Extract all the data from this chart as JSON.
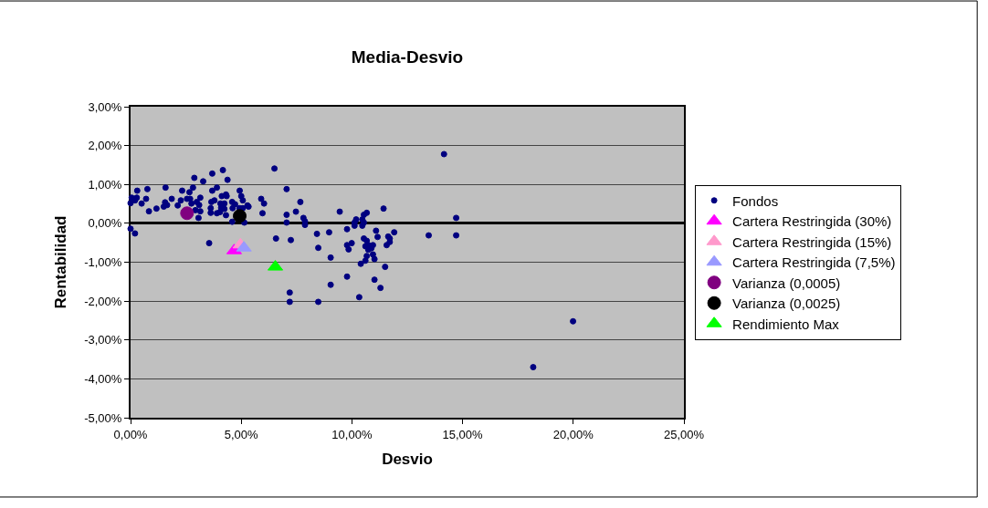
{
  "chart_data": {
    "type": "scatter",
    "title": "Media-Desvio",
    "xlabel": "Desvio",
    "ylabel": "Rentabilidad",
    "xlim": [
      0,
      25
    ],
    "xticks": [
      {
        "value": 0,
        "label": "0,00%"
      },
      {
        "value": 5,
        "label": "5,00%"
      },
      {
        "value": 10,
        "label": "10,00%"
      },
      {
        "value": 15,
        "label": "15,00%"
      },
      {
        "value": 20,
        "label": "20,00%"
      },
      {
        "value": 25,
        "label": "25,00%"
      }
    ],
    "ylim": [
      -5,
      3
    ],
    "yticks": [
      {
        "value": -5,
        "label": "-5,00%"
      },
      {
        "value": -4,
        "label": "-4,00%"
      },
      {
        "value": -3,
        "label": "-3,00%"
      },
      {
        "value": -2,
        "label": "-2,00%"
      },
      {
        "value": -1,
        "label": "-1,00%"
      },
      {
        "value": 0,
        "label": "0,00%"
      },
      {
        "value": 1,
        "label": "1,00%"
      },
      {
        "value": 2,
        "label": "2,00%"
      },
      {
        "value": 3,
        "label": "3,00%"
      }
    ],
    "grid": "y",
    "legend": "right",
    "series": [
      {
        "name": "Fondos",
        "color": "#000080",
        "marker": "circle",
        "x": [
          0.05,
          0.0,
          0.2,
          0.3,
          0.28,
          0.5,
          0.7,
          0.76,
          0.83,
          1.17,
          1.58,
          1.56,
          1.65,
          1.5,
          1.86,
          2.13,
          2.27,
          2.33,
          2.55,
          2.69,
          2.66,
          2.82,
          2.88,
          2.75,
          2.93,
          2.99,
          3.1,
          3.15,
          3.07,
          3.15,
          3.28,
          3.69,
          3.69,
          3.9,
          3.79,
          3.65,
          3.62,
          3.62,
          3.9,
          4.04,
          4.09,
          4.06,
          4.17,
          4.12,
          4.24,
          4.31,
          4.38,
          4.31,
          4.24,
          4.34,
          4.59,
          4.61,
          4.72,
          4.59,
          4.93,
          5.0,
          5.07,
          5.07,
          4.92,
          5.28,
          5.33,
          5.14,
          5.9,
          6.03,
          5.96,
          6.5,
          7.05,
          7.05,
          7.05,
          7.47,
          7.67,
          7.81,
          7.88,
          7.88,
          0.0,
          0.2,
          3.55,
          6.57,
          7.24,
          7.19,
          7.19,
          14.16,
          9.45,
          11.43,
          10.54,
          10.67,
          10.19,
          10.47,
          10.12,
          10.54,
          10.12,
          10.47,
          9.78,
          14.71,
          14.71,
          13.47,
          11.09,
          11.91,
          8.97,
          8.42,
          11.16,
          11.64,
          11.71,
          11.71,
          11.57,
          10.54,
          10.67,
          10.74,
          10.61,
          10.95,
          10.88,
          10.74,
          9.99,
          9.78,
          9.85,
          8.48,
          10.67,
          10.95,
          11.02,
          10.61,
          10.4,
          9.04,
          11.5,
          9.78,
          11.02,
          11.29,
          9.04,
          10.33,
          8.48,
          19.99,
          18.19
        ],
        "values": [
          0.66,
          0.52,
          0.59,
          0.84,
          0.66,
          0.51,
          0.63,
          0.88,
          0.31,
          0.38,
          0.92,
          0.54,
          0.47,
          0.43,
          0.63,
          0.46,
          0.59,
          0.84,
          0.63,
          0.63,
          0.8,
          0.92,
          1.17,
          0.51,
          0.34,
          0.55,
          0.47,
          0.66,
          0.14,
          0.31,
          1.08,
          1.28,
          0.84,
          0.92,
          0.59,
          0.55,
          0.39,
          0.27,
          0.26,
          0.29,
          0.4,
          0.51,
          1.37,
          0.7,
          0.51,
          0.74,
          1.12,
          0.21,
          0.37,
          0.7,
          0.55,
          0.39,
          0.49,
          0.04,
          0.84,
          0.7,
          0.59,
          0.39,
          0.39,
          0.46,
          0.43,
          0.02,
          0.63,
          0.51,
          0.26,
          1.41,
          0.88,
          0.22,
          0.02,
          0.3,
          0.55,
          0.14,
          0.05,
          -0.04,
          -0.14,
          -0.26,
          -0.51,
          -0.39,
          -0.43,
          -1.78,
          -2.02,
          1.78,
          0.3,
          0.38,
          0.22,
          0.27,
          0.1,
          0.1,
          0.02,
          0.02,
          -0.06,
          -0.06,
          -0.15,
          0.14,
          -0.31,
          -0.31,
          -0.19,
          -0.23,
          -0.23,
          -0.27,
          -0.35,
          -0.34,
          -0.39,
          -0.48,
          -0.56,
          -0.39,
          -0.45,
          -0.56,
          -0.59,
          -0.56,
          -0.64,
          -0.68,
          -0.51,
          -0.56,
          -0.67,
          -0.63,
          -0.84,
          -0.8,
          -0.92,
          -0.96,
          -1.04,
          -0.88,
          -1.12,
          -1.37,
          -1.45,
          -1.66,
          -1.58,
          -1.9,
          -2.02,
          -2.52,
          -3.7
        ]
      },
      {
        "name": "Cartera Restringida (30%)",
        "color": "#ff00ff",
        "marker": "triangle",
        "x": [
          4.68
        ],
        "values": [
          -0.7
        ]
      },
      {
        "name": "Cartera Restringida (15%)",
        "color": "#ff99cc",
        "marker": "triangle",
        "x": [
          4.96
        ],
        "values": [
          -0.55
        ]
      },
      {
        "name": "Cartera Restringida (7,5%)",
        "color": "#9999ff",
        "marker": "triangle",
        "x": [
          5.12
        ],
        "values": [
          -0.63
        ]
      },
      {
        "name": "Varianza (0,0005)",
        "color": "#800080",
        "marker": "circle",
        "x": [
          2.55
        ],
        "values": [
          0.26
        ]
      },
      {
        "name": "Varianza (0,0025)",
        "color": "#000000",
        "marker": "circle",
        "x": [
          4.93
        ],
        "values": [
          0.19
        ]
      },
      {
        "name": "Rendimiento Max",
        "color": "#00ff00",
        "marker": "triangle",
        "x": [
          6.54
        ],
        "values": [
          -1.12
        ]
      }
    ]
  }
}
